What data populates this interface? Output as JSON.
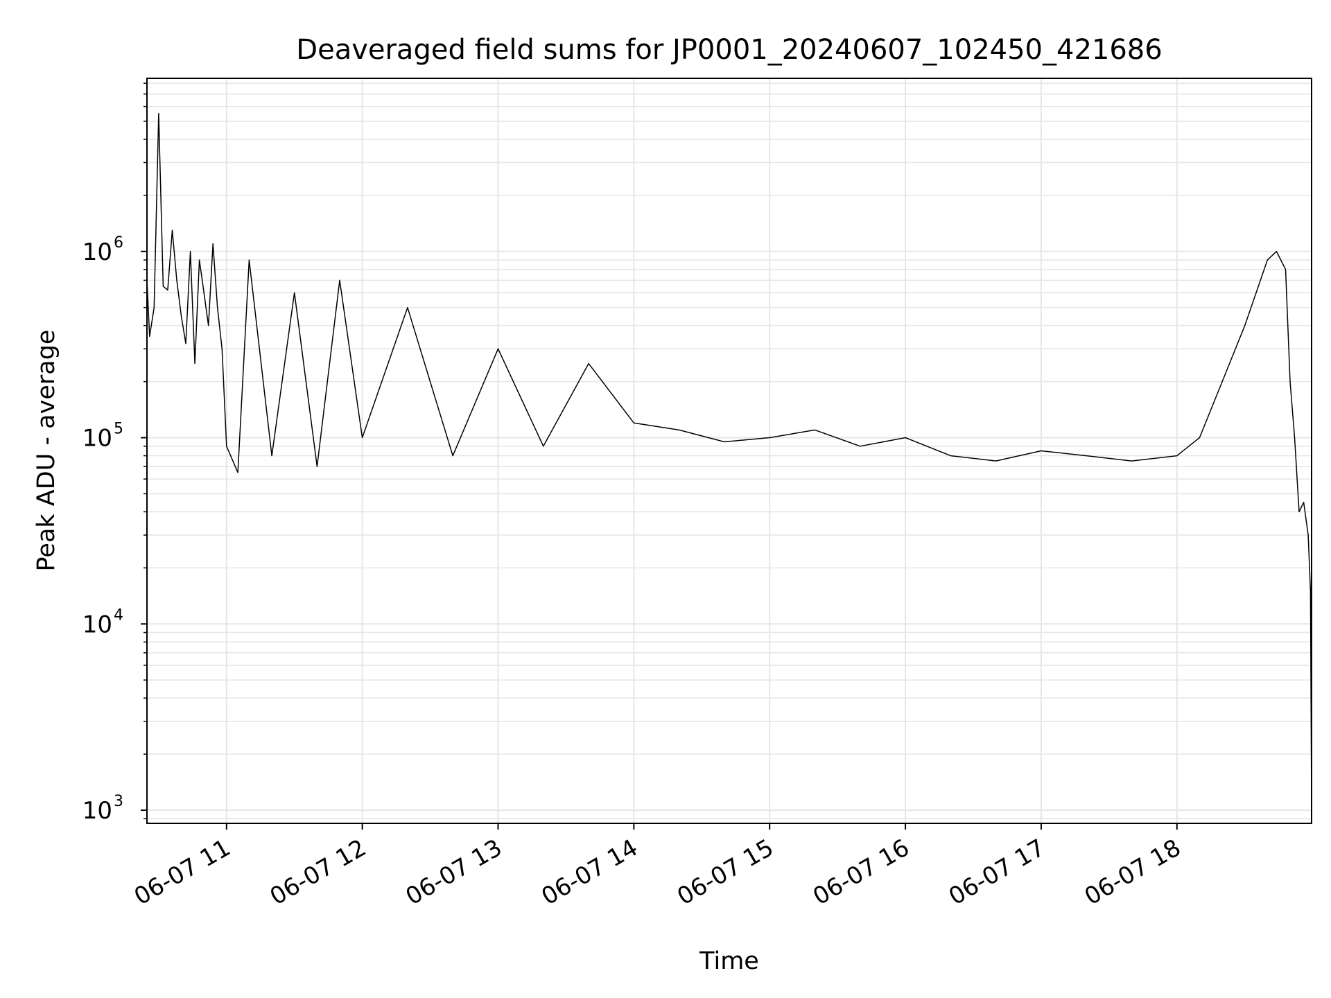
{
  "chart_data": {
    "type": "line",
    "title": "Deaveraged field sums for JP0001_20240607_102450_421686",
    "xlabel": "Time",
    "ylabel": "Peak ADU - average",
    "y_scale": "log",
    "ylim": [
      850,
      8500000
    ],
    "xlim": [
      "2024-06-07 10:24:50",
      "2024-06-07 18:59:30"
    ],
    "grid": true,
    "line_color": "#000000",
    "grid_color": "#e6e6e6",
    "x_ticks": [
      {
        "value": "2024-06-07 11:00",
        "label": "06-07 11"
      },
      {
        "value": "2024-06-07 12:00",
        "label": "06-07 12"
      },
      {
        "value": "2024-06-07 13:00",
        "label": "06-07 13"
      },
      {
        "value": "2024-06-07 14:00",
        "label": "06-07 14"
      },
      {
        "value": "2024-06-07 15:00",
        "label": "06-07 15"
      },
      {
        "value": "2024-06-07 16:00",
        "label": "06-07 16"
      },
      {
        "value": "2024-06-07 17:00",
        "label": "06-07 17"
      },
      {
        "value": "2024-06-07 18:00",
        "label": "06-07 18"
      }
    ],
    "y_ticks": [
      {
        "value": 1000,
        "base": "10",
        "exp": "3"
      },
      {
        "value": 10000,
        "base": "10",
        "exp": "4"
      },
      {
        "value": 100000,
        "base": "10",
        "exp": "5"
      },
      {
        "value": 1000000,
        "base": "10",
        "exp": "6"
      }
    ],
    "series": [
      {
        "x": [
          "2024-06-07 10:24:50",
          "2024-06-07 10:26:00",
          "2024-06-07 10:28:00",
          "2024-06-07 10:30:00",
          "2024-06-07 10:32:00",
          "2024-06-07 10:34:00",
          "2024-06-07 10:36:00",
          "2024-06-07 10:38:00",
          "2024-06-07 10:40:00",
          "2024-06-07 10:42:00",
          "2024-06-07 10:44:00",
          "2024-06-07 10:46:00",
          "2024-06-07 10:48:00",
          "2024-06-07 10:50:00",
          "2024-06-07 10:52:00",
          "2024-06-07 10:54:00",
          "2024-06-07 10:56:00",
          "2024-06-07 10:58:00",
          "2024-06-07 11:00:00",
          "2024-06-07 11:05:00",
          "2024-06-07 11:10:00",
          "2024-06-07 11:20:00",
          "2024-06-07 11:30:00",
          "2024-06-07 11:40:00",
          "2024-06-07 11:50:00",
          "2024-06-07 12:00:00",
          "2024-06-07 12:20:00",
          "2024-06-07 12:40:00",
          "2024-06-07 13:00:00",
          "2024-06-07 13:20:00",
          "2024-06-07 13:40:00",
          "2024-06-07 14:00:00",
          "2024-06-07 14:20:00",
          "2024-06-07 14:40:00",
          "2024-06-07 15:00:00",
          "2024-06-07 15:20:00",
          "2024-06-07 15:40:00",
          "2024-06-07 16:00:00",
          "2024-06-07 16:20:00",
          "2024-06-07 16:40:00",
          "2024-06-07 17:00:00",
          "2024-06-07 17:20:00",
          "2024-06-07 17:40:00",
          "2024-06-07 18:00:00",
          "2024-06-07 18:10:00",
          "2024-06-07 18:20:00",
          "2024-06-07 18:30:00",
          "2024-06-07 18:40:00",
          "2024-06-07 18:44:00",
          "2024-06-07 18:48:00",
          "2024-06-07 18:50:00",
          "2024-06-07 18:52:00",
          "2024-06-07 18:54:00",
          "2024-06-07 18:56:00",
          "2024-06-07 18:58:00",
          "2024-06-07 18:59:00",
          "2024-06-07 18:59:30"
        ],
        "y": [
          700000,
          350000,
          500000,
          5500000,
          650000,
          620000,
          1300000,
          700000,
          450000,
          320000,
          1000000,
          250000,
          900000,
          600000,
          400000,
          1100000,
          500000,
          300000,
          90000,
          65000,
          900000,
          80000,
          600000,
          70000,
          700000,
          100000,
          500000,
          80000,
          300000,
          90000,
          250000,
          120000,
          110000,
          95000,
          100000,
          110000,
          90000,
          100000,
          80000,
          75000,
          85000,
          80000,
          75000,
          80000,
          100000,
          200000,
          400000,
          900000,
          1000000,
          800000,
          200000,
          100000,
          40000,
          45000,
          30000,
          15000,
          1000
        ]
      }
    ]
  }
}
